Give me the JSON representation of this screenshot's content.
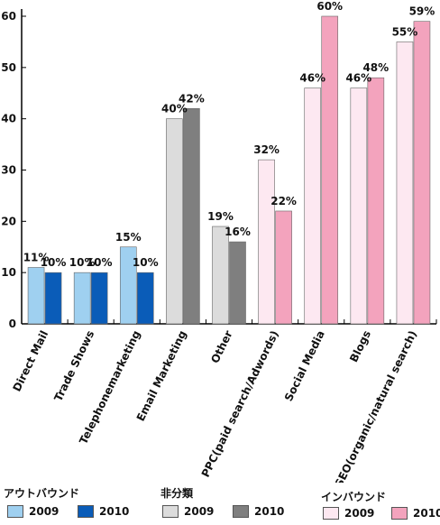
{
  "chart_data": {
    "type": "bar",
    "categories": [
      "Direct Mail",
      "Trade Shows",
      "Telephonemarketing",
      "Email Marketing",
      "Other",
      "PPC(paid search/Adwords)",
      "Social Media",
      "Blogs",
      "SEO(organic/natural search)"
    ],
    "groups": [
      "outbound",
      "outbound",
      "outbound",
      "other",
      "other",
      "inbound",
      "inbound",
      "inbound",
      "inbound"
    ],
    "values_2009": [
      11,
      10,
      15,
      40,
      19,
      32,
      46,
      46,
      55
    ],
    "values_2010": [
      10,
      10,
      10,
      42,
      16,
      22,
      60,
      48,
      59
    ],
    "labels_2009": [
      "11%",
      "10%",
      "15%",
      "40%",
      "19%",
      "32%",
      "46%",
      "46%",
      "55%"
    ],
    "labels_2010": [
      "10%",
      "10%",
      "10%",
      "42%",
      "16%",
      "22%",
      "60%",
      "48%",
      "59%"
    ],
    "yticks": [
      "0",
      "10",
      "20",
      "30",
      "40",
      "50",
      "60"
    ],
    "ylim": [
      0,
      60
    ],
    "grid": false,
    "colors": {
      "outbound": {
        "2009": "#9fd0f0",
        "2010": "#0a5cb8"
      },
      "other": {
        "2009": "#dcdcdc",
        "2010": "#7f7f7f"
      },
      "inbound": {
        "2009": "#fde8f1",
        "2010": "#f3a3bd"
      }
    }
  },
  "legend": {
    "outbound": {
      "title": "アウトバウンド",
      "y2009": "2009",
      "y2010": "2010"
    },
    "other": {
      "title": "非分類",
      "y2009": "2009",
      "y2010": "2010"
    },
    "inbound": {
      "title": "インバウンド",
      "y2009": "2009",
      "y2010": "2010"
    }
  }
}
